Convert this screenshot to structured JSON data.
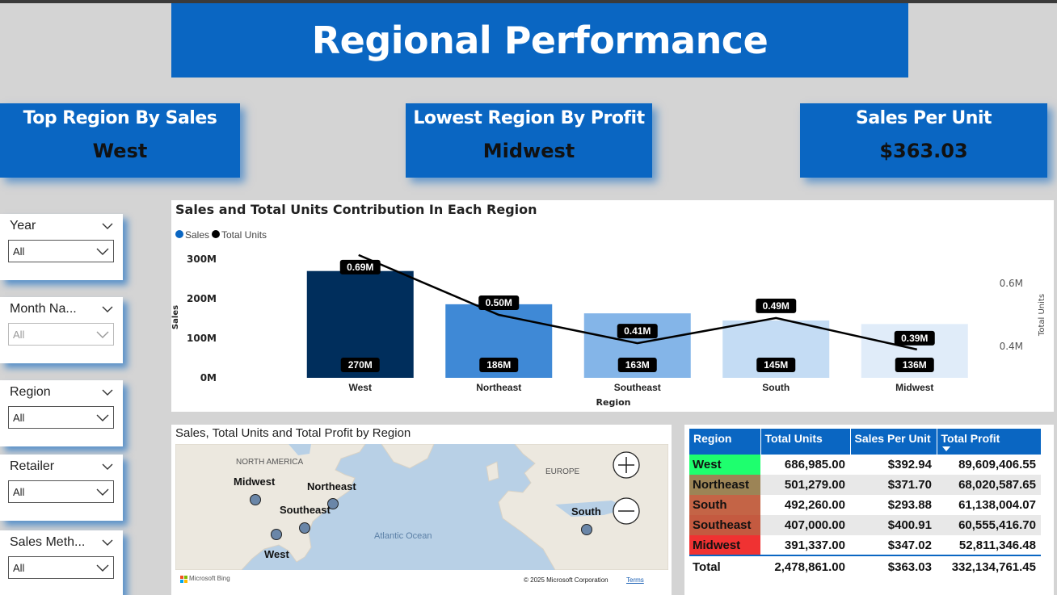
{
  "title": "Regional Performance",
  "kpis": [
    {
      "label": "Top Region By Sales",
      "value": "West"
    },
    {
      "label": "Lowest Region By Profit",
      "value": "Midwest"
    },
    {
      "label": "Sales Per Unit",
      "value": "$363.03"
    }
  ],
  "slicers": [
    {
      "title": "Year",
      "value": "All"
    },
    {
      "title": "Month Na...",
      "value": "All"
    },
    {
      "title": "Region",
      "value": "All"
    },
    {
      "title": "Retailer",
      "value": "All"
    },
    {
      "title": "Sales Meth...",
      "value": "All"
    }
  ],
  "chart": {
    "title": "Sales and Total Units Contribution In Each Region",
    "legend": [
      "Sales",
      "Total Units"
    ],
    "colors": {
      "sales_legend": "#0a66c2",
      "units": "#000000"
    }
  },
  "chart_data": {
    "type": "bar",
    "title": "Sales and Total Units Contribution In Each Region",
    "xlabel": "Region",
    "ylabel": "Sales",
    "y2label": "Total Units",
    "categories": [
      "West",
      "Northeast",
      "Southeast",
      "South",
      "Midwest"
    ],
    "y_ticks": [
      "0M",
      "100M",
      "200M",
      "300M"
    ],
    "y2_ticks": [
      "0.4M",
      "0.6M"
    ],
    "ylim": [
      0,
      300
    ],
    "y2lim": [
      0.3,
      0.7
    ],
    "bar_colors": [
      "#002e5c",
      "#3f89d6",
      "#84b5e8",
      "#c4dcf4",
      "#e0ecf9"
    ],
    "series": [
      {
        "name": "Sales",
        "type": "bar",
        "values": [
          270,
          186,
          163,
          145,
          136
        ],
        "labels": [
          "270M",
          "186M",
          "163M",
          "145M",
          "136M"
        ]
      },
      {
        "name": "Total Units",
        "type": "line",
        "values": [
          0.69,
          0.5,
          0.41,
          0.49,
          0.39
        ],
        "labels": [
          "0.69M",
          "0.50M",
          "0.41M",
          "0.49M",
          "0.39M"
        ]
      }
    ]
  },
  "map": {
    "title": "Sales, Total Units and Total Profit by Region",
    "labels": {
      "continent_na": "NORTH AMERICA",
      "continent_eu": "EUROPE",
      "ocean": "Atlantic Ocean"
    },
    "points": [
      {
        "name": "Midwest"
      },
      {
        "name": "Northeast"
      },
      {
        "name": "Southeast"
      },
      {
        "name": "West"
      },
      {
        "name": "South"
      }
    ],
    "attribution_logo": "Microsoft Bing",
    "copyright": "© 2025 Microsoft Corporation",
    "terms": "Terms",
    "zoom_in": "+",
    "zoom_out": "−"
  },
  "table": {
    "headers": [
      "Region",
      "Total Units",
      "Sales Per Unit",
      "Total Profit"
    ],
    "rows": [
      {
        "region": "West",
        "units": "686,985.00",
        "spu": "$392.94",
        "profit": "89,609,406.55",
        "color": "#1eff6e"
      },
      {
        "region": "Northeast",
        "units": "501,279.00",
        "spu": "$371.70",
        "profit": "68,020,587.65",
        "color": "#9c8456"
      },
      {
        "region": "South",
        "units": "492,260.00",
        "spu": "$293.88",
        "profit": "61,138,004.07",
        "color": "#c46446"
      },
      {
        "region": "Southeast",
        "units": "407,000.00",
        "spu": "$400.91",
        "profit": "60,555,416.70",
        "color": "#c45a40"
      },
      {
        "region": "Midwest",
        "units": "391,337.00",
        "spu": "$347.02",
        "profit": "52,811,346.48",
        "color": "#f03232"
      }
    ],
    "total": {
      "region": "Total",
      "units": "2,478,861.00",
      "spu": "$363.03",
      "profit": "332,134,761.45"
    }
  }
}
